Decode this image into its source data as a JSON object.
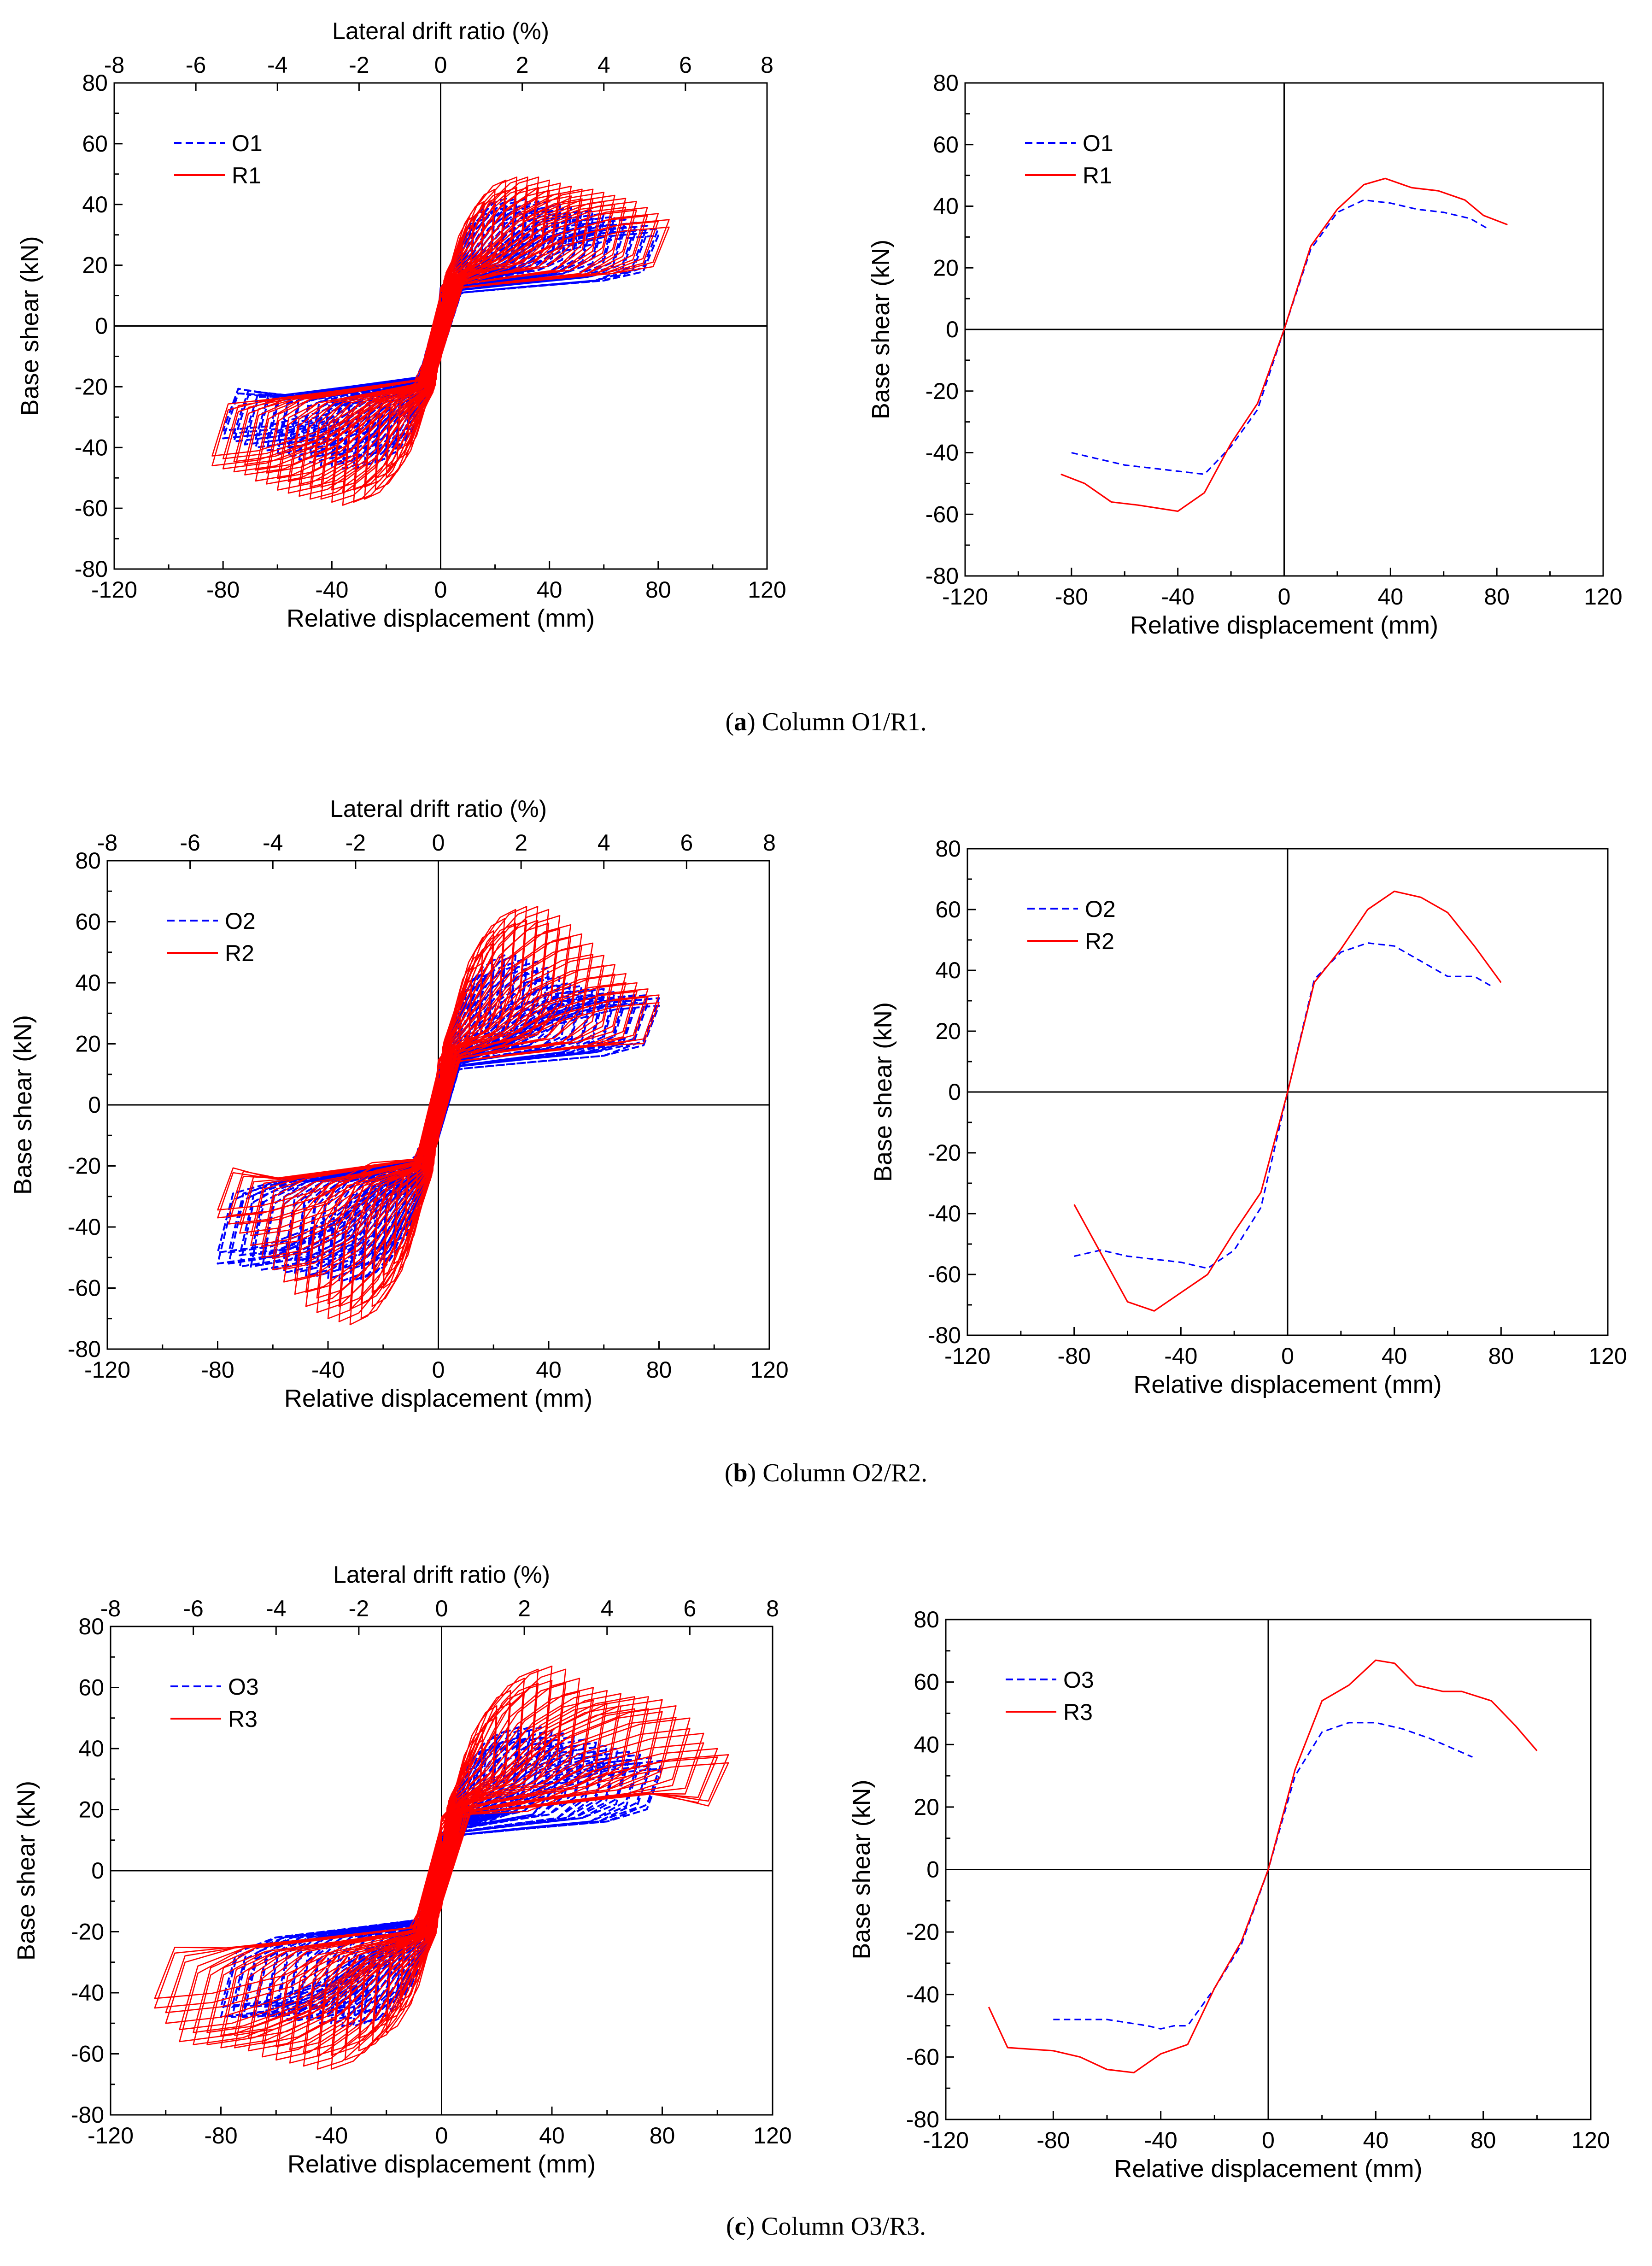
{
  "colors": {
    "original": "#0000ff",
    "retrofitted": "#ff0000",
    "axis": "#000000"
  },
  "captions": [
    {
      "label": "a",
      "text": ") Column O1/R1."
    },
    {
      "label": "b",
      "text": ") Column O2/R2."
    },
    {
      "label": "c",
      "text": ") Column O3/R3."
    }
  ],
  "common": {
    "xlabel": "Relative displacement (mm)",
    "ylabel": "Base shear (kN)",
    "top_xlabel": "Lateral drift ratio (%)",
    "xticks": [
      -120,
      -80,
      -40,
      0,
      40,
      80,
      120
    ],
    "yticks": [
      -80,
      -60,
      -40,
      -20,
      0,
      20,
      40,
      60,
      80
    ],
    "top_xticks": [
      -8,
      -6,
      -4,
      -2,
      0,
      2,
      4,
      6,
      8
    ]
  },
  "chart_data": [
    {
      "type": "line",
      "panel": "a-hysteresis",
      "xlabel": "Relative displacement (mm)",
      "ylabel": "Base shear (kN)",
      "top_xlabel": "Lateral drift ratio (%)",
      "xlim": [
        -120,
        120
      ],
      "ylim": [
        -80,
        80
      ],
      "top_xlim": [
        -8,
        8
      ],
      "legend": "top-left",
      "series": [
        {
          "name": "O1",
          "style": "dashed",
          "color": "#0000ff",
          "amplitudes": [
            4,
            8,
            12,
            16,
            20,
            24,
            28,
            32,
            36,
            40,
            44,
            48,
            52,
            56,
            60,
            64,
            68,
            72,
            76,
            80
          ],
          "peak_pos": [
            15,
            25,
            33,
            38,
            41,
            42,
            42,
            42,
            41,
            41,
            40,
            39,
            38,
            38,
            37,
            36,
            35,
            34,
            33,
            32
          ],
          "peak_neg": [
            -15,
            -25,
            -32,
            -38,
            -43,
            -45,
            -46,
            -47,
            -47,
            -46,
            -46,
            -45,
            -44,
            -43,
            -42,
            -41,
            -40,
            -39,
            -38,
            -37
          ],
          "res_pos": [
            8,
            12,
            15,
            17,
            17,
            18,
            18,
            18,
            17,
            17,
            16,
            16,
            15,
            15,
            15,
            14,
            14,
            14,
            13,
            13
          ],
          "res_neg": [
            -8,
            -12,
            -15,
            -17,
            -18,
            -19,
            -20,
            -20,
            -20,
            -20,
            -20,
            -20,
            -20,
            -20,
            -20,
            -20,
            -20,
            -20,
            -20,
            -20
          ]
        },
        {
          "name": "R1",
          "style": "solid",
          "color": "#ff0000",
          "amplitudes": [
            4,
            8,
            12,
            16,
            20,
            24,
            28,
            32,
            36,
            40,
            44,
            48,
            52,
            56,
            60,
            64,
            68,
            72,
            76,
            80,
            84
          ],
          "peak_pos": [
            16,
            27,
            36,
            41,
            45,
            48,
            49,
            49,
            49,
            48,
            47,
            46,
            45,
            45,
            44,
            43,
            42,
            41,
            39,
            37,
            35
          ],
          "peak_neg": [
            -16,
            -27,
            -36,
            -44,
            -50,
            -54,
            -57,
            -58,
            -59,
            -58,
            -57,
            -57,
            -56,
            -55,
            -54,
            -52,
            -51,
            -49,
            -48,
            -47,
            -46
          ],
          "res_pos": [
            9,
            13,
            16,
            17,
            18,
            18,
            18,
            18,
            18,
            18,
            17,
            17,
            17,
            16,
            16,
            16,
            15,
            15,
            15,
            15,
            15
          ],
          "res_neg": [
            -9,
            -13,
            -16,
            -18,
            -20,
            -21,
            -22,
            -22,
            -22,
            -22,
            -22,
            -22,
            -22,
            -22,
            -22,
            -21,
            -21,
            -21,
            -21,
            -21,
            -21
          ]
        }
      ]
    },
    {
      "type": "line",
      "panel": "a-envelope",
      "xlabel": "Relative displacement (mm)",
      "ylabel": "Base shear (kN)",
      "xlim": [
        -120,
        120
      ],
      "ylim": [
        -80,
        80
      ],
      "legend": "top-left",
      "series": [
        {
          "name": "O1",
          "style": "dashed",
          "color": "#0000ff",
          "x": [
            -80,
            -70,
            -60,
            -50,
            -40,
            -30,
            -20,
            -10,
            0,
            10,
            20,
            30,
            40,
            50,
            60,
            70,
            76
          ],
          "y": [
            -40,
            -42,
            -44,
            -45,
            -46,
            -47,
            -38,
            -26,
            0,
            26,
            38,
            42,
            41,
            39,
            38,
            36,
            33
          ]
        },
        {
          "name": "R1",
          "style": "solid",
          "color": "#ff0000",
          "x": [
            -84,
            -75,
            -65,
            -55,
            -40,
            -30,
            -20,
            -10,
            0,
            10,
            20,
            30,
            38,
            48,
            58,
            68,
            75,
            84
          ],
          "y": [
            -47,
            -50,
            -56,
            -57,
            -59,
            -53,
            -37,
            -24,
            0,
            27,
            39,
            47,
            49,
            46,
            45,
            42,
            37,
            34
          ]
        }
      ]
    },
    {
      "type": "line",
      "panel": "b-hysteresis",
      "xlabel": "Relative displacement (mm)",
      "ylabel": "Base shear (kN)",
      "top_xlabel": "Lateral drift ratio (%)",
      "xlim": [
        -120,
        120
      ],
      "ylim": [
        -80,
        80
      ],
      "top_xlim": [
        -8,
        8
      ],
      "legend": "top-left",
      "series": [
        {
          "name": "O2",
          "style": "dashed",
          "color": "#0000ff",
          "amplitudes": [
            4,
            8,
            12,
            16,
            20,
            24,
            28,
            32,
            36,
            40,
            44,
            48,
            52,
            56,
            60,
            64,
            68,
            72,
            76,
            80
          ],
          "peak_pos": [
            15,
            26,
            36,
            43,
            47,
            49,
            49,
            48,
            47,
            45,
            42,
            40,
            39,
            38,
            38,
            37,
            37,
            36,
            36,
            35
          ],
          "peak_neg": [
            -15,
            -26,
            -36,
            -45,
            -51,
            -55,
            -57,
            -58,
            -58,
            -57,
            -56,
            -56,
            -55,
            -55,
            -54,
            -54,
            -53,
            -53,
            -52,
            -52
          ],
          "res_pos": [
            8,
            12,
            15,
            17,
            17,
            18,
            18,
            18,
            18,
            17,
            17,
            16,
            16,
            16,
            15,
            15,
            15,
            15,
            15,
            14
          ],
          "res_neg": [
            -8,
            -12,
            -15,
            -18,
            -20,
            -21,
            -22,
            -22,
            -22,
            -22,
            -22,
            -22,
            -22,
            -22,
            -22,
            -22,
            -22,
            -22,
            -22,
            -22
          ]
        },
        {
          "name": "R2",
          "style": "solid",
          "color": "#ff0000",
          "amplitudes": [
            4,
            8,
            12,
            16,
            20,
            24,
            28,
            32,
            36,
            40,
            44,
            48,
            52,
            56,
            60,
            64,
            68,
            72,
            76,
            80
          ],
          "peak_pos": [
            17,
            29,
            41,
            50,
            57,
            61,
            64,
            65,
            65,
            64,
            62,
            59,
            56,
            53,
            49,
            46,
            43,
            40,
            38,
            36
          ],
          "peak_neg": [
            -17,
            -30,
            -42,
            -52,
            -60,
            -66,
            -70,
            -72,
            -71,
            -70,
            -68,
            -66,
            -62,
            -58,
            -54,
            -50,
            -46,
            -42,
            -39,
            -37
          ],
          "res_pos": [
            10,
            14,
            17,
            19,
            20,
            21,
            21,
            21,
            21,
            21,
            20,
            20,
            19,
            19,
            18,
            18,
            18,
            17,
            17,
            17
          ],
          "res_neg": [
            -10,
            -14,
            -17,
            -19,
            -21,
            -22,
            -23,
            -23,
            -23,
            -23,
            -23,
            -22,
            -22,
            -22,
            -22,
            -21,
            -21,
            -21,
            -21,
            -21
          ]
        }
      ]
    },
    {
      "type": "line",
      "panel": "b-envelope",
      "xlabel": "Relative displacement (mm)",
      "ylabel": "Base shear (kN)",
      "xlim": [
        -120,
        120
      ],
      "ylim": [
        -80,
        80
      ],
      "legend": "top-left",
      "series": [
        {
          "name": "O2",
          "style": "dashed",
          "color": "#0000ff",
          "x": [
            -80,
            -70,
            -60,
            -50,
            -40,
            -30,
            -20,
            -10,
            0,
            10,
            20,
            30,
            40,
            50,
            60,
            70,
            76
          ],
          "y": [
            -54,
            -52,
            -54,
            -55,
            -56,
            -58,
            -52,
            -38,
            0,
            37,
            46,
            49,
            48,
            43,
            38,
            38,
            35
          ]
        },
        {
          "name": "R2",
          "style": "solid",
          "color": "#ff0000",
          "x": [
            -80,
            -70,
            -60,
            -50,
            -40,
            -30,
            -20,
            -10,
            0,
            10,
            20,
            30,
            40,
            50,
            60,
            70,
            80
          ],
          "y": [
            -37,
            -53,
            -69,
            -72,
            -66,
            -60,
            -46,
            -33,
            0,
            36,
            47,
            60,
            66,
            64,
            59,
            48,
            36
          ]
        }
      ]
    },
    {
      "type": "line",
      "panel": "c-hysteresis",
      "xlabel": "Relative displacement (mm)",
      "ylabel": "Base shear (kN)",
      "top_xlabel": "Lateral drift ratio (%)",
      "xlim": [
        -120,
        120
      ],
      "ylim": [
        -80,
        80
      ],
      "top_xlim": [
        -8,
        8
      ],
      "legend": "top-left",
      "series": [
        {
          "name": "O3",
          "style": "dashed",
          "color": "#0000ff",
          "amplitudes": [
            4,
            8,
            12,
            16,
            20,
            24,
            28,
            32,
            36,
            40,
            44,
            48,
            52,
            56,
            60,
            64,
            68,
            72,
            76,
            80
          ],
          "peak_pos": [
            14,
            25,
            34,
            40,
            44,
            46,
            47,
            47,
            47,
            46,
            45,
            44,
            43,
            42,
            41,
            40,
            39,
            38,
            37,
            36
          ],
          "peak_neg": [
            -14,
            -25,
            -34,
            -41,
            -46,
            -49,
            -50,
            -51,
            -51,
            -50,
            -50,
            -49,
            -49,
            -49,
            -48,
            -48,
            -48,
            -48,
            -48,
            -48
          ],
          "res_pos": [
            8,
            12,
            14,
            16,
            17,
            17,
            17,
            17,
            17,
            17,
            16,
            16,
            16,
            15,
            15,
            15,
            15,
            14,
            14,
            14
          ],
          "res_neg": [
            -8,
            -12,
            -15,
            -17,
            -18,
            -19,
            -19,
            -19,
            -19,
            -19,
            -19,
            -19,
            -19,
            -19,
            -19,
            -19,
            -19,
            -19,
            -19,
            -19
          ]
        },
        {
          "name": "R3",
          "style": "solid",
          "color": "#ff0000",
          "amplitudes": [
            5,
            10,
            15,
            20,
            25,
            30,
            35,
            40,
            45,
            50,
            55,
            60,
            65,
            70,
            75,
            80,
            85,
            90,
            95,
            100,
            104
          ],
          "peak_pos": [
            20,
            35,
            46,
            54,
            59,
            63,
            66,
            67,
            66,
            63,
            60,
            59,
            58,
            57,
            57,
            56,
            54,
            50,
            45,
            40,
            38
          ],
          "peak_neg": [
            -20,
            -35,
            -46,
            -53,
            -56,
            -59,
            -62,
            -65,
            -65,
            -64,
            -63,
            -62,
            -61,
            -59,
            -58,
            -58,
            -57,
            -57,
            -56,
            -50,
            -45
          ],
          "res_pos": [
            11,
            16,
            19,
            21,
            23,
            24,
            25,
            25,
            25,
            25,
            25,
            24,
            24,
            24,
            23,
            23,
            23,
            22,
            22,
            22,
            22
          ],
          "res_neg": [
            -11,
            -16,
            -19,
            -21,
            -22,
            -23,
            -24,
            -24,
            -24,
            -24,
            -24,
            -24,
            -23,
            -23,
            -23,
            -23,
            -23,
            -22,
            -22,
            -22,
            -22
          ]
        }
      ]
    },
    {
      "type": "line",
      "panel": "c-envelope",
      "xlabel": "Relative displacement (mm)",
      "ylabel": "Base shear (kN)",
      "xlim": [
        -120,
        120
      ],
      "ylim": [
        -80,
        80
      ],
      "legend": "top-left",
      "series": [
        {
          "name": "O3",
          "style": "dashed",
          "color": "#0000ff",
          "x": [
            -80,
            -60,
            -45,
            -40,
            -35,
            -30,
            -20,
            -10,
            0,
            10,
            20,
            30,
            40,
            50,
            60,
            76
          ],
          "y": [
            -48,
            -48,
            -50,
            -51,
            -50,
            -50,
            -38,
            -24,
            0,
            30,
            44,
            47,
            47,
            45,
            42,
            36
          ]
        },
        {
          "name": "R3",
          "style": "solid",
          "color": "#ff0000",
          "x": [
            -104,
            -97,
            -80,
            -70,
            -60,
            -50,
            -40,
            -30,
            -20,
            -10,
            0,
            10,
            20,
            30,
            40,
            47,
            55,
            65,
            72,
            83,
            92,
            100
          ],
          "y": [
            -44,
            -57,
            -58,
            -60,
            -64,
            -65,
            -59,
            -56,
            -38,
            -23,
            0,
            32,
            54,
            59,
            67,
            66,
            59,
            57,
            57,
            54,
            46,
            38
          ]
        }
      ]
    }
  ]
}
